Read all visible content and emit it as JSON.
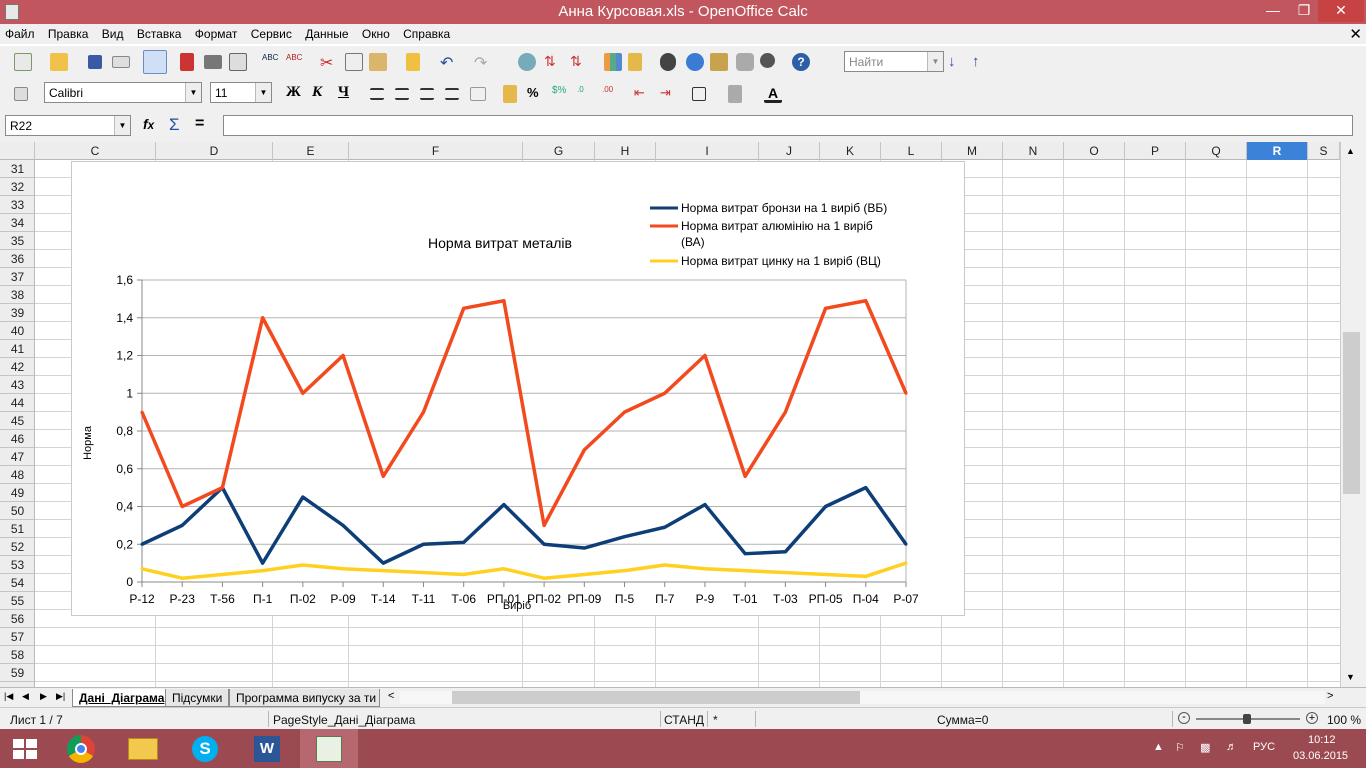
{
  "window": {
    "title": "Анна Курсовая.xls - OpenOffice Calc"
  },
  "menu": [
    "Файл",
    "Правка",
    "Вид",
    "Вставка",
    "Формат",
    "Сервис",
    "Данные",
    "Окно",
    "Справка"
  ],
  "toolbar": {
    "find_placeholder": "Найти",
    "font_name": "Calibri",
    "font_size": "11",
    "bold": "Ж",
    "italic": "К",
    "underline": "Ч"
  },
  "formula_bar": {
    "name_box": "R22",
    "value": ""
  },
  "columns": [
    "C",
    "D",
    "E",
    "F",
    "G",
    "H",
    "I",
    "J",
    "K",
    "L",
    "M",
    "N",
    "O",
    "P",
    "Q",
    "R",
    "S"
  ],
  "rows": [
    "31",
    "32",
    "33",
    "34",
    "35",
    "36",
    "37",
    "38",
    "39",
    "40",
    "41",
    "42",
    "43",
    "44",
    "45",
    "46",
    "47",
    "48",
    "49",
    "50",
    "51",
    "52",
    "53",
    "54",
    "55",
    "56",
    "57",
    "58",
    "59"
  ],
  "chart_data": {
    "type": "line",
    "title": "Норма витрат металів",
    "xlabel": "Виріб",
    "ylabel": "Норма",
    "ylim": [
      0,
      1.6
    ],
    "yticks": [
      "0",
      "0,2",
      "0,4",
      "0,6",
      "0,8",
      "1",
      "1,2",
      "1,4",
      "1,6"
    ],
    "grid": true,
    "legend_position": "top-right",
    "categories": [
      "Р-12",
      "Р-23",
      "Т-56",
      "П-1",
      "П-02",
      "Р-09",
      "Т-14",
      "Т-11",
      "Т-06",
      "РП-01",
      "РП-02",
      "РП-09",
      "П-5",
      "П-7",
      "Р-9",
      "Т-01",
      "Т-03",
      "РП-05",
      "П-04",
      "Р-07"
    ],
    "series": [
      {
        "name": "Норма витрат бронзи на 1 виріб (ВБ)",
        "legend_lines": [
          "Норма витрат бронзи на 1 виріб (ВБ)"
        ],
        "color": "#0d3e78",
        "values": [
          0.2,
          0.3,
          0.5,
          0.1,
          0.45,
          0.3,
          0.1,
          0.2,
          0.21,
          0.41,
          0.2,
          0.18,
          0.24,
          0.29,
          0.41,
          0.15,
          0.16,
          0.4,
          0.5,
          0.2
        ]
      },
      {
        "name": "Норма витрат алюмінію на 1 виріб (ВА)",
        "legend_lines": [
          "Норма витрат алюмінію на 1 виріб",
          "(ВА)"
        ],
        "color": "#f24a1e",
        "values": [
          0.9,
          0.4,
          0.5,
          1.4,
          1.0,
          1.2,
          0.56,
          0.9,
          1.45,
          1.49,
          0.3,
          0.7,
          0.9,
          1.0,
          1.2,
          0.56,
          0.9,
          1.45,
          1.49,
          1.0
        ]
      },
      {
        "name": "Норма витрат цинку на 1 виріб (ВЦ)",
        "legend_lines": [
          "Норма витрат цинку на 1 виріб (ВЦ)"
        ],
        "color": "#ffd020",
        "values": [
          0.07,
          0.02,
          0.04,
          0.06,
          0.09,
          0.07,
          0.06,
          0.05,
          0.04,
          0.07,
          0.02,
          0.04,
          0.06,
          0.09,
          0.07,
          0.06,
          0.05,
          0.04,
          0.03,
          0.1
        ]
      }
    ]
  },
  "sheet_tabs": [
    "Дані_Діаграма",
    "Підсумки",
    "Программа випуску за ти"
  ],
  "status": {
    "sheet": "Лист 1 / 7",
    "page_style": "PageStyle_Дані_Діаграма",
    "mode": "СТАНД",
    "modified": "*",
    "sum": "Сумма=0",
    "zoom": "100 %"
  },
  "taskbar": {
    "language": "РУС",
    "time": "10:12",
    "date": "03.06.2015"
  },
  "colors": {
    "titlebar": "#c2565f",
    "taskbar": "#9c4a52",
    "selected_col": "#3b82d8"
  }
}
